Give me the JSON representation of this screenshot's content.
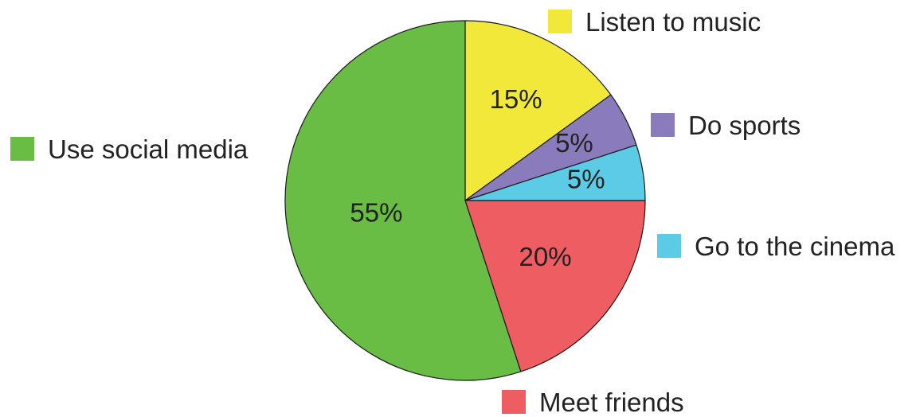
{
  "chart_data": {
    "type": "pie",
    "slices": [
      {
        "label": "Listen to music",
        "value": 15,
        "value_label": "15%",
        "color": "#f2e83a"
      },
      {
        "label": "Do sports",
        "value": 5,
        "value_label": "5%",
        "color": "#8a7bbd"
      },
      {
        "label": "Go to the cinema",
        "value": 5,
        "value_label": "5%",
        "color": "#5bcbe6"
      },
      {
        "label": "Meet friends",
        "value": 20,
        "value_label": "20%",
        "color": "#ee5d61"
      },
      {
        "label": "Use social media",
        "value": 55,
        "value_label": "55%",
        "color": "#69bd45"
      }
    ]
  }
}
